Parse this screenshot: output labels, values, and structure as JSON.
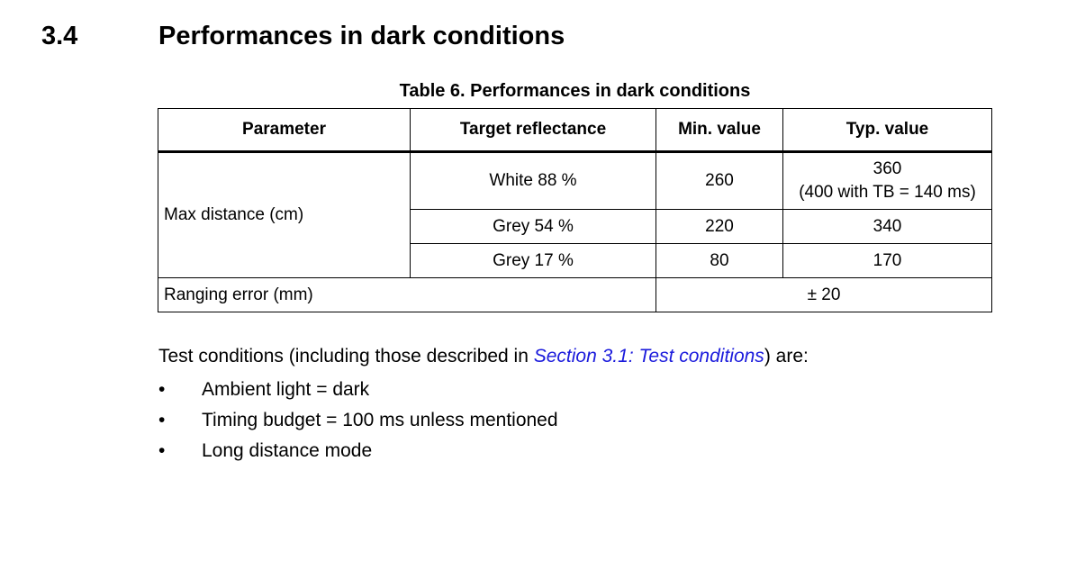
{
  "section": {
    "number": "3.4",
    "title": "Performances in dark conditions"
  },
  "table": {
    "caption": "Table 6. Performances in dark conditions",
    "headers": [
      "Parameter",
      "Target reflectance",
      "Min. value",
      "Typ. value"
    ],
    "max_distance": {
      "label": "Max distance (cm)",
      "rows": [
        {
          "reflectance": "White 88 %",
          "min": "260",
          "typ": "360",
          "typ_note": "(400 with TB = 140 ms)"
        },
        {
          "reflectance": "Grey 54 %",
          "min": "220",
          "typ": "340"
        },
        {
          "reflectance": "Grey 17 %",
          "min": "80",
          "typ": "170"
        }
      ]
    },
    "ranging_error": {
      "label": "Ranging error (mm)",
      "value": "± 20"
    }
  },
  "conditions": {
    "intro_before": "Test conditions (including those described in ",
    "link": "Section 3.1: Test conditions",
    "intro_after": ") are:",
    "bullet": "•",
    "items": [
      "Ambient light = dark",
      "Timing budget = 100 ms unless mentioned",
      "Long distance mode"
    ]
  }
}
